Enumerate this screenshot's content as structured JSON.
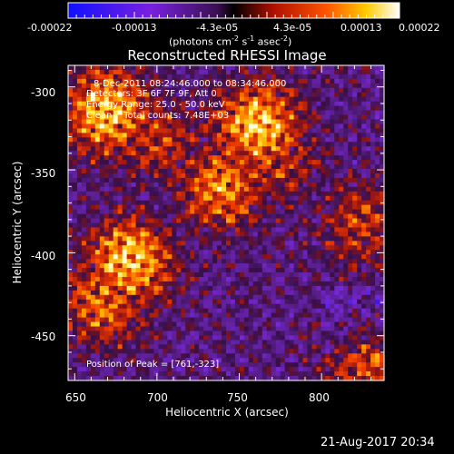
{
  "colorbar": {
    "tick_labels": [
      "-0.00022",
      "-0.00013",
      "-4.3e-05",
      "4.3e-05",
      "0.00013",
      "0.00022"
    ],
    "units_prefix": "(photons cm",
    "units_exp1": "-2",
    "units_mid": " s",
    "units_exp2": "-1",
    "units_mid2": " asec",
    "units_exp3": "-2",
    "units_suffix": ")"
  },
  "footer": {
    "timestamp": "21-Aug-2017 20:34"
  },
  "chart_data": {
    "type": "heatmap",
    "title": "Reconstructed RHESSI Image",
    "xlabel": "Heliocentric X (arcsec)",
    "ylabel": "Heliocentric Y (arcsec)",
    "xlim": [
      646,
      838
    ],
    "ylim": [
      -477,
      -287
    ],
    "x_ticks": [
      650,
      700,
      750,
      800
    ],
    "y_ticks": [
      -300,
      -350,
      -400,
      -450
    ],
    "colormap": "blue-purple-red-yellow-white (RHESSI)",
    "color_range": [
      -0.00022,
      0.00022
    ],
    "annotations": [
      "8-Dec-2011 08:24:46.000 to 08:34:46.000",
      "Detectors: 3F 6F 7F 9F, Att 0",
      "Energy Range: 25.0 - 50.0 keV",
      "Clean    Total counts: 7.48E+03"
    ],
    "peak_label": "Position of Peak = [761,-323]",
    "peak_position": [
      761,
      -323
    ],
    "bright_regions": [
      {
        "x": 670,
        "y": -315,
        "level": 1.0
      },
      {
        "x": 700,
        "y": -332,
        "level": 0.5
      },
      {
        "x": 761,
        "y": -323,
        "level": 1.0
      },
      {
        "x": 740,
        "y": -360,
        "level": 0.8
      },
      {
        "x": 770,
        "y": -342,
        "level": 0.55
      },
      {
        "x": 683,
        "y": -405,
        "level": 1.0
      },
      {
        "x": 668,
        "y": -430,
        "level": 0.7
      },
      {
        "x": 825,
        "y": -382,
        "level": 0.5
      },
      {
        "x": 828,
        "y": -468,
        "level": 0.6
      }
    ],
    "grid": false
  }
}
